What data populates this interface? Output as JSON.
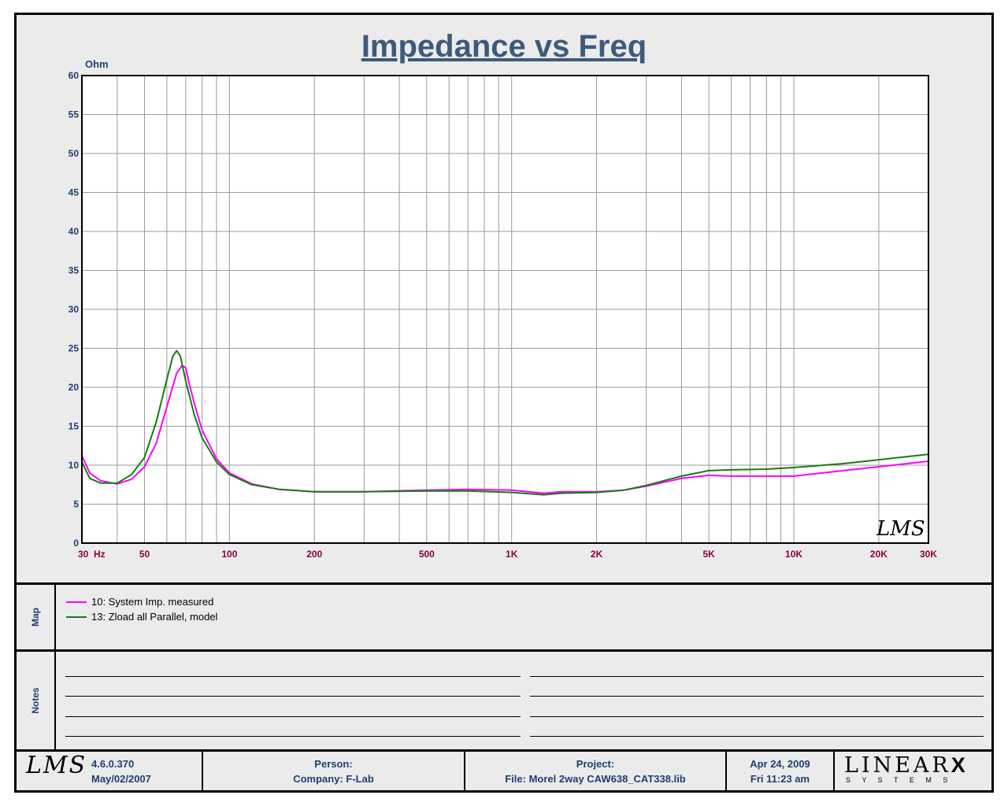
{
  "chart_data": {
    "type": "line",
    "title": "Impedance vs Freq",
    "ylabel": "Ohm",
    "xlabel": "",
    "x_scale": "log",
    "xlim": [
      30,
      30000
    ],
    "ylim": [
      0,
      60
    ],
    "y_ticks": [
      0,
      5,
      10,
      15,
      20,
      25,
      30,
      35,
      40,
      45,
      50,
      55,
      60
    ],
    "x_ticks": [
      {
        "v": 30,
        "label": "30  Hz"
      },
      {
        "v": 50,
        "label": "50"
      },
      {
        "v": 100,
        "label": "100"
      },
      {
        "v": 200,
        "label": "200"
      },
      {
        "v": 500,
        "label": "500"
      },
      {
        "v": 1000,
        "label": "1K"
      },
      {
        "v": 2000,
        "label": "2K"
      },
      {
        "v": 5000,
        "label": "5K"
      },
      {
        "v": 10000,
        "label": "10K"
      },
      {
        "v": 20000,
        "label": "20K"
      },
      {
        "v": 30000,
        "label": "30K"
      }
    ],
    "grid": true,
    "series": [
      {
        "name": "10: System Imp. measured",
        "color": "#ff00ff",
        "x": [
          30,
          32,
          35,
          40,
          45,
          50,
          55,
          60,
          65,
          68,
          70,
          72,
          75,
          80,
          90,
          100,
          120,
          150,
          200,
          300,
          500,
          700,
          1000,
          1300,
          1500,
          2000,
          2500,
          3000,
          4000,
          5000,
          6000,
          8000,
          10000,
          15000,
          20000,
          30000
        ],
        "y": [
          11.2,
          9.0,
          8.0,
          7.6,
          8.2,
          9.8,
          12.8,
          17.5,
          21.8,
          22.8,
          22.5,
          20.5,
          18.0,
          14.5,
          10.8,
          9.0,
          7.6,
          6.9,
          6.6,
          6.6,
          6.8,
          6.9,
          6.8,
          6.4,
          6.6,
          6.6,
          6.8,
          7.3,
          8.3,
          8.7,
          8.6,
          8.6,
          8.6,
          9.3,
          9.8,
          10.5
        ]
      },
      {
        "name": "13: Zload all Parallel, model",
        "color": "#1a7a1a",
        "x": [
          30,
          32,
          35,
          40,
          45,
          50,
          55,
          60,
          63,
          65,
          67,
          70,
          75,
          80,
          90,
          100,
          120,
          150,
          200,
          300,
          500,
          700,
          1000,
          1300,
          1500,
          2000,
          2500,
          3000,
          4000,
          5000,
          6000,
          8000,
          10000,
          15000,
          20000,
          30000
        ],
        "y": [
          10.4,
          8.3,
          7.7,
          7.7,
          8.8,
          11.0,
          15.5,
          21.0,
          24.0,
          24.7,
          24.0,
          20.8,
          16.5,
          13.5,
          10.4,
          8.8,
          7.5,
          6.9,
          6.6,
          6.6,
          6.7,
          6.7,
          6.5,
          6.2,
          6.4,
          6.5,
          6.8,
          7.4,
          8.6,
          9.3,
          9.4,
          9.5,
          9.7,
          10.2,
          10.7,
          11.4
        ]
      }
    ]
  },
  "logo_text": "LMS",
  "map_label": "Map",
  "notes_label": "Notes",
  "footer": {
    "logo": "LMS",
    "version": "4.6.0.370",
    "version_date": "May/02/2007",
    "person": "Person:",
    "company": "Company: F-Lab",
    "project": "Project:",
    "file": "File: Morel 2way CAW638_CAT338.lib",
    "date": "Apr 24, 2009",
    "time": "Fri 11:23 am",
    "brand": "LINEAR",
    "brand_x": "X",
    "brand_sub": "S Y S T E M S"
  },
  "colors": {
    "title": "#3d5a7a",
    "axis_label": "#1f3f6f",
    "tick_x": "#8b0040"
  }
}
